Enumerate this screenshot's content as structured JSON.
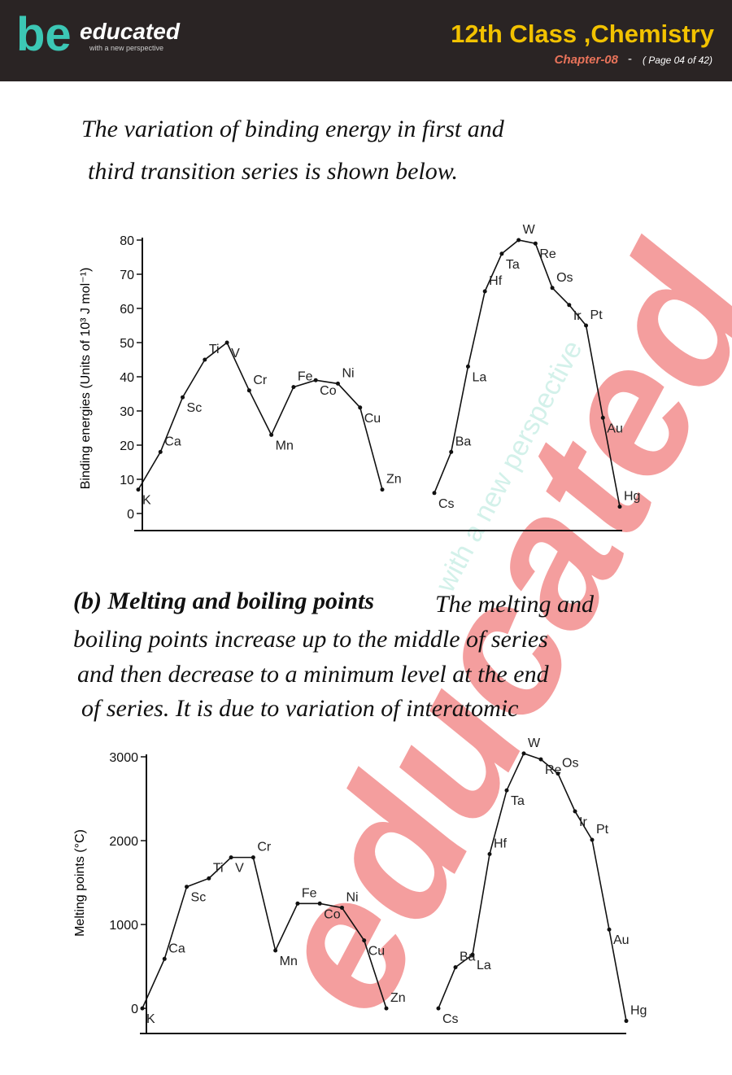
{
  "header": {
    "logo_mark": "be",
    "logo_word": "educated",
    "logo_tagline": "with a new perspective",
    "title": "12th Class ,Chemistry",
    "chapter": "Chapter-08",
    "separator": "-",
    "page": "( Page 04 of 42)"
  },
  "watermark": {
    "word": "educated",
    "tagline": "with a new perspective"
  },
  "paragraph_1": [
    "The variation of binding energy in first and",
    "third transition series is shown below."
  ],
  "paragraph_2": {
    "heading": "(b) Melting and boiling points",
    "lines": [
      "The melting and",
      "boiling points increase up to the middle of series",
      "and then decrease to a minimum level at the end",
      "of series. It is due to variation of interatomic"
    ]
  },
  "chart_data": [
    {
      "type": "line",
      "y_label": "Binding energies (Units of 10³ J mol⁻¹)",
      "ylim": [
        -5,
        80
      ],
      "yticks": [
        0,
        10,
        20,
        30,
        40,
        50,
        60,
        70,
        80
      ],
      "series": [
        {
          "labels": [
            "K",
            "Ca",
            "Sc",
            "Ti",
            "V",
            "Cr",
            "Mn",
            "Fe",
            "Co",
            "Ni",
            "Cu",
            "Zn"
          ],
          "values": [
            7,
            18,
            34,
            45,
            50,
            36,
            23,
            37,
            39,
            38,
            31,
            7
          ],
          "color": "#111111"
        },
        {
          "labels": [
            "Cs",
            "Ba",
            "La",
            "Hf",
            "Ta",
            "W",
            "Re",
            "Os",
            "Ir",
            "Pt",
            "Au",
            "Hg"
          ],
          "values": [
            6,
            18,
            43,
            65,
            76,
            80,
            79,
            66,
            61,
            55,
            28,
            2
          ],
          "color": "#111111"
        }
      ]
    },
    {
      "type": "line",
      "y_label": "Melting points (°C)",
      "ylim": [
        -300,
        3000
      ],
      "yticks": [
        0,
        1000,
        2000,
        3000
      ],
      "series": [
        {
          "labels": [
            "K",
            "Ca",
            "Sc",
            "Ti",
            "V",
            "Cr",
            "Mn",
            "Fe",
            "Co",
            "Ni",
            "Cu",
            "Zn"
          ],
          "values": [
            0,
            590,
            1450,
            1550,
            1800,
            1800,
            690,
            1250,
            1250,
            1200,
            810,
            0
          ],
          "color": "#111111"
        },
        {
          "labels": [
            "Cs",
            "Ba",
            "La",
            "Hf",
            "Ta",
            "W",
            "Re",
            "Os",
            "Ir",
            "Pt",
            "Au",
            "Hg"
          ],
          "values": [
            0,
            490,
            640,
            1840,
            2600,
            3040,
            2970,
            2800,
            2350,
            2010,
            940,
            -150
          ],
          "color": "#111111"
        }
      ]
    }
  ]
}
